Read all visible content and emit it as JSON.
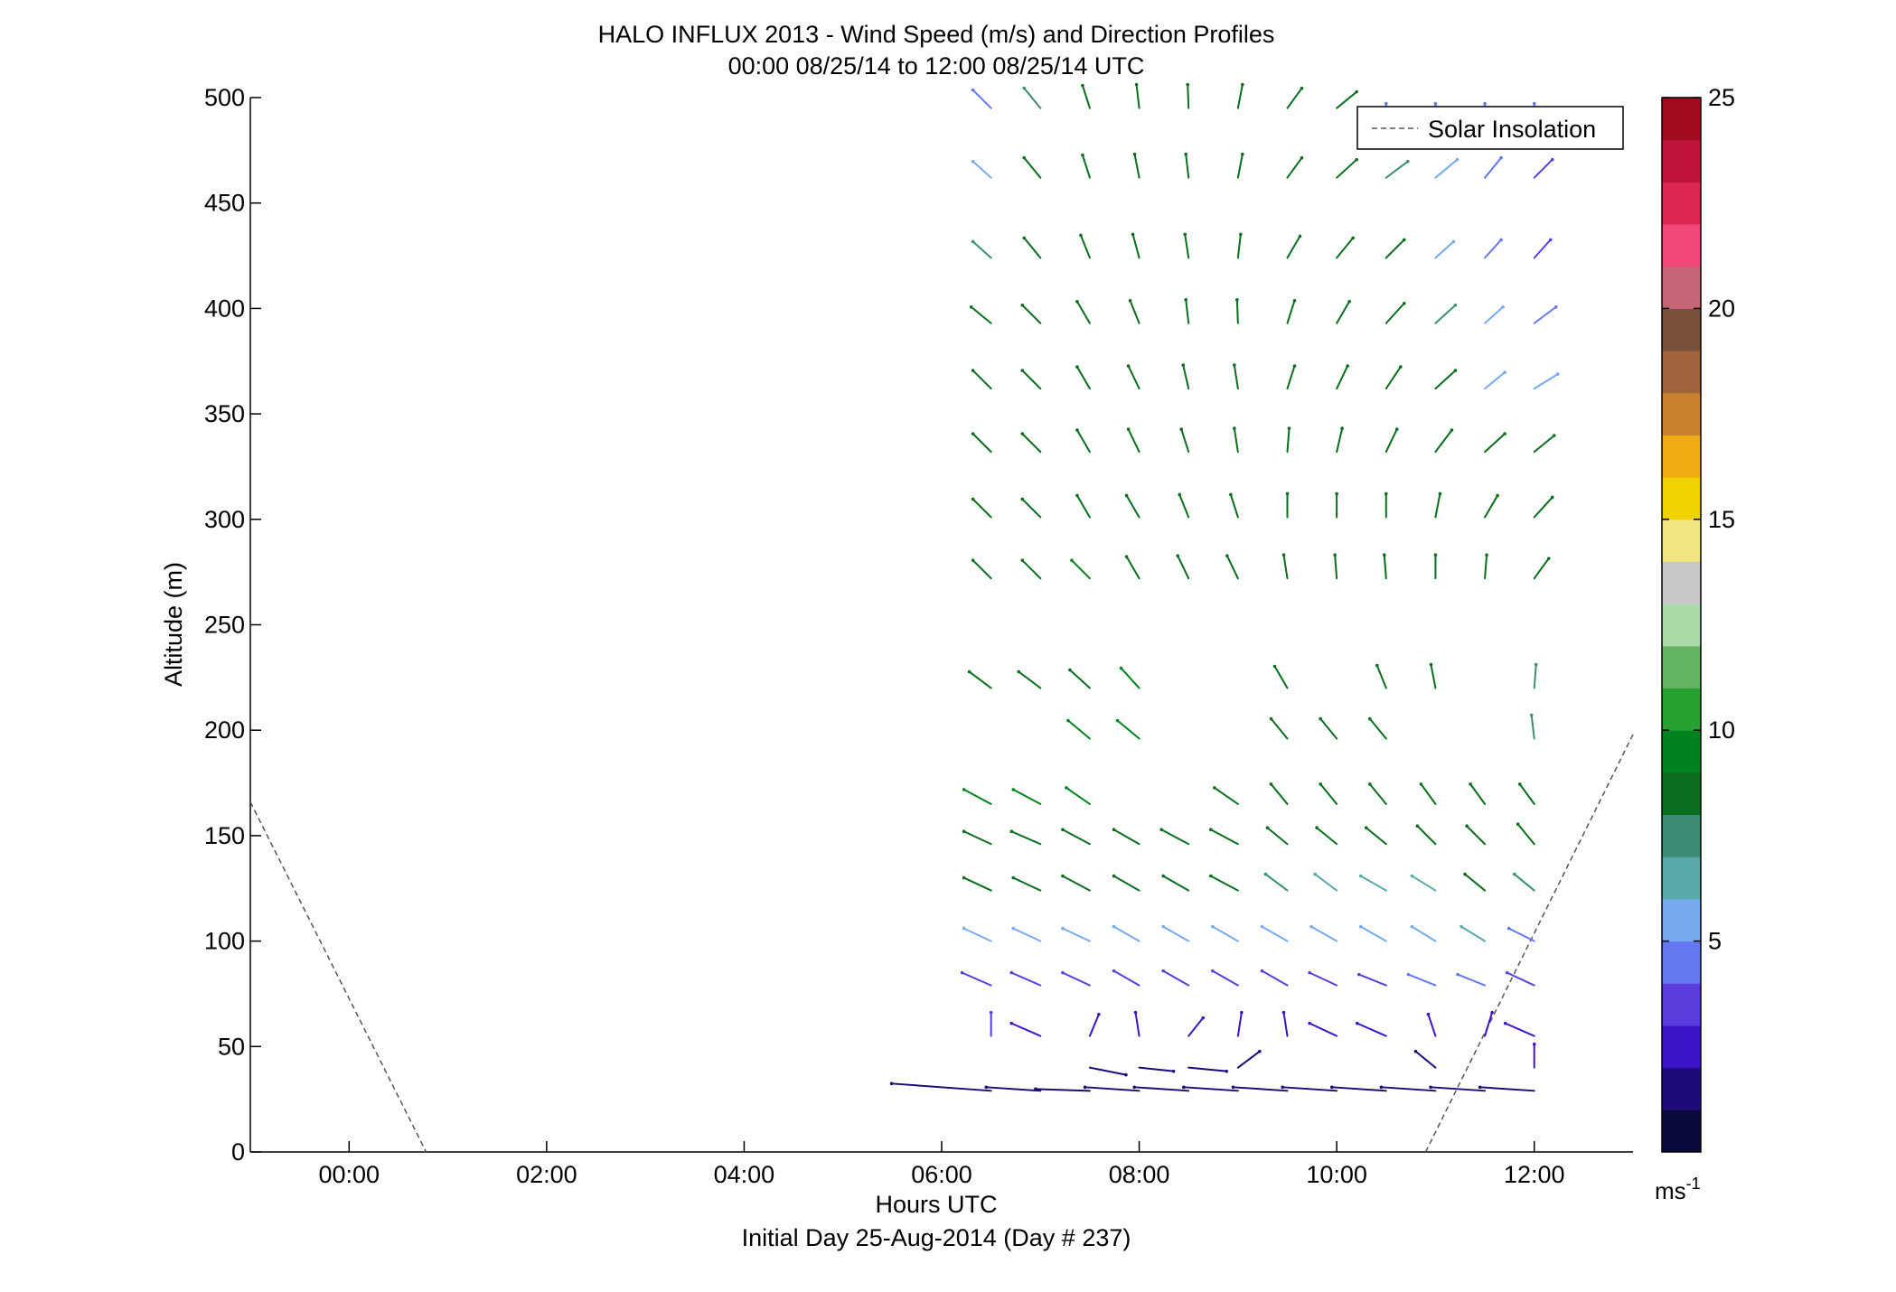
{
  "chart_data": {
    "type": "wind-barb-profile",
    "title": "HALO INFLUX 2013 - Wind Speed (m/s) and Direction Profiles",
    "subtitle": "00:00 08/25/14 to 12:00 08/25/14  UTC",
    "xlabel": "Hours UTC",
    "xlabel2": "Initial Day 25-Aug-2014 (Day # 237)",
    "ylabel": "Altitude (m)",
    "xlim": [
      -1,
      13
    ],
    "ylim": [
      0,
      500
    ],
    "xticks": [
      0,
      2,
      4,
      6,
      8,
      10,
      12
    ],
    "xtick_labels": [
      "00:00",
      "02:00",
      "04:00",
      "06:00",
      "08:00",
      "10:00",
      "12:00"
    ],
    "yticks": [
      0,
      50,
      100,
      150,
      200,
      250,
      300,
      350,
      400,
      450,
      500
    ],
    "ytick_labels": [
      "0",
      "50",
      "100",
      "150",
      "200",
      "250",
      "300",
      "350",
      "400",
      "450",
      "500"
    ],
    "legend": {
      "label": "Solar Insolation",
      "placement": "top-right"
    },
    "solar_insolation": [
      {
        "x": -1.0,
        "y": 166
      },
      {
        "x": 0.78,
        "y": 0
      },
      {
        "x": 10.9,
        "y": 0
      },
      {
        "x": 13.0,
        "y": 198
      }
    ],
    "colorbar": {
      "range": [
        0,
        25
      ],
      "ticks": [
        5,
        10,
        15,
        20,
        25
      ],
      "tick_labels": [
        "5",
        "10",
        "15",
        "20",
        "25"
      ],
      "unit_base": "ms",
      "unit_exp": "-1",
      "colors": [
        "#0a0a3c",
        "#1e0a78",
        "#3c14c8",
        "#5a3cdc",
        "#6478f0",
        "#78aaf0",
        "#5aaaaa",
        "#3c8c78",
        "#0a6e1e",
        "#00821e",
        "#28a032",
        "#64b464",
        "#aadcaa",
        "#c8c8c8",
        "#f0e682",
        "#f0d200",
        "#f0aa14",
        "#c8822d",
        "#a0643c",
        "#78503c",
        "#c86478",
        "#f04678",
        "#dc2850",
        "#be143c",
        "#a00a1e"
      ]
    },
    "time_columns": [
      6.5,
      7.0,
      7.5,
      8.0,
      8.5,
      9.0,
      9.5,
      10.0,
      10.5,
      11.0,
      11.5,
      12.0
    ],
    "barbs": [
      {
        "alt": 495,
        "d": [
          [
            -20,
            -20,
            4.5
          ],
          [
            -18,
            -22,
            7.5
          ],
          [
            -8,
            -25,
            8
          ],
          [
            -3,
            -26,
            8
          ],
          [
            -1,
            -26,
            8
          ],
          [
            5,
            -26,
            8
          ],
          [
            16,
            -22,
            8
          ],
          [
            22,
            -18,
            8
          ],
          [
            0,
            -5,
            4
          ],
          [
            0,
            -5,
            4
          ],
          [
            0,
            -5,
            4
          ],
          [
            0,
            -5,
            4
          ]
        ]
      },
      {
        "alt": 462,
        "d": [
          [
            -20,
            -18,
            5
          ],
          [
            -18,
            -22,
            8
          ],
          [
            -8,
            -25,
            8
          ],
          [
            -5,
            -26,
            8
          ],
          [
            -3,
            -26,
            8
          ],
          [
            5,
            -26,
            8
          ],
          [
            16,
            -22,
            8
          ],
          [
            22,
            -20,
            8
          ],
          [
            24,
            -18,
            7.5
          ],
          [
            24,
            -20,
            5
          ],
          [
            18,
            -22,
            4
          ],
          [
            20,
            -20,
            3.5
          ]
        ]
      },
      {
        "alt": 424,
        "d": [
          [
            -20,
            -18,
            7
          ],
          [
            -18,
            -22,
            8
          ],
          [
            -10,
            -25,
            8
          ],
          [
            -7,
            -26,
            8
          ],
          [
            -4,
            -26,
            8
          ],
          [
            3,
            -26,
            8
          ],
          [
            14,
            -24,
            8
          ],
          [
            18,
            -22,
            8
          ],
          [
            20,
            -20,
            8
          ],
          [
            20,
            -18,
            5
          ],
          [
            18,
            -20,
            4
          ],
          [
            18,
            -20,
            3.5
          ]
        ]
      },
      {
        "alt": 393,
        "d": [
          [
            -22,
            -18,
            8
          ],
          [
            -20,
            -20,
            8
          ],
          [
            -14,
            -24,
            8
          ],
          [
            -10,
            -25,
            8
          ],
          [
            -3,
            -26,
            8
          ],
          [
            -1,
            -26,
            8
          ],
          [
            8,
            -25,
            8
          ],
          [
            14,
            -24,
            8
          ],
          [
            20,
            -22,
            8
          ],
          [
            22,
            -20,
            7.5
          ],
          [
            20,
            -18,
            5
          ],
          [
            24,
            -18,
            4
          ]
        ]
      },
      {
        "alt": 362,
        "d": [
          [
            -20,
            -20,
            8
          ],
          [
            -20,
            -20,
            8
          ],
          [
            -14,
            -24,
            8
          ],
          [
            -12,
            -25,
            8
          ],
          [
            -6,
            -26,
            8
          ],
          [
            -4,
            -26,
            8
          ],
          [
            8,
            -25,
            8
          ],
          [
            12,
            -25,
            8
          ],
          [
            16,
            -24,
            8
          ],
          [
            22,
            -20,
            8
          ],
          [
            22,
            -18,
            5
          ],
          [
            26,
            -16,
            5
          ]
        ]
      },
      {
        "alt": 332,
        "d": [
          [
            -20,
            -20,
            8
          ],
          [
            -20,
            -20,
            8
          ],
          [
            -14,
            -24,
            8
          ],
          [
            -12,
            -25,
            8
          ],
          [
            -8,
            -25,
            8
          ],
          [
            -4,
            -26,
            8
          ],
          [
            2,
            -26,
            8
          ],
          [
            6,
            -26,
            8
          ],
          [
            12,
            -25,
            8
          ],
          [
            18,
            -24,
            8
          ],
          [
            22,
            -20,
            8
          ],
          [
            22,
            -18,
            8
          ]
        ]
      },
      {
        "alt": 301,
        "d": [
          [
            -20,
            -20,
            8
          ],
          [
            -20,
            -20,
            8
          ],
          [
            -14,
            -24,
            8
          ],
          [
            -14,
            -24,
            8
          ],
          [
            -10,
            -25,
            8
          ],
          [
            -8,
            -25,
            8
          ],
          [
            0,
            -26,
            8
          ],
          [
            0,
            -26,
            8
          ],
          [
            0,
            -26,
            8
          ],
          [
            5,
            -26,
            8
          ],
          [
            14,
            -24,
            8
          ],
          [
            20,
            -22,
            8
          ]
        ]
      },
      {
        "alt": 272,
        "d": [
          [
            -20,
            -20,
            8
          ],
          [
            -20,
            -20,
            8.5
          ],
          [
            -20,
            -20,
            9
          ],
          [
            -14,
            -24,
            8
          ],
          [
            -12,
            -25,
            8
          ],
          [
            -12,
            -25,
            8
          ],
          [
            -4,
            -26,
            8
          ],
          [
            -2,
            -26,
            8
          ],
          [
            -2,
            -26,
            8
          ],
          [
            0,
            -26,
            8
          ],
          [
            2,
            -26,
            8
          ],
          [
            16,
            -22,
            8
          ]
        ]
      },
      {
        "alt": 220,
        "d": [
          [
            -24,
            -18,
            8
          ],
          [
            -24,
            -18,
            8
          ],
          [
            -22,
            -20,
            8.5
          ],
          [
            -20,
            -22,
            9
          ],
          null,
          null,
          [
            -14,
            -24,
            8
          ],
          null,
          [
            -10,
            -25,
            8
          ],
          [
            -5,
            -26,
            8
          ],
          null,
          [
            2,
            -26,
            7.5
          ]
        ]
      },
      {
        "alt": 196,
        "d": [
          null,
          null,
          [
            -24,
            -20,
            9
          ],
          [
            -24,
            -20,
            9.5
          ],
          null,
          null,
          [
            -18,
            -22,
            8
          ],
          [
            -18,
            -22,
            8
          ],
          [
            -18,
            -22,
            8
          ],
          null,
          null,
          [
            -3,
            -26,
            7.5
          ]
        ]
      },
      {
        "alt": 165,
        "d": [
          [
            -30,
            -16,
            9.5
          ],
          [
            -30,
            -16,
            9
          ],
          [
            -26,
            -18,
            9
          ],
          null,
          null,
          [
            -26,
            -18,
            8
          ],
          [
            -18,
            -22,
            8
          ],
          [
            -18,
            -22,
            8
          ],
          [
            -18,
            -22,
            8
          ],
          [
            -16,
            -22,
            8
          ],
          [
            -16,
            -22,
            8
          ],
          [
            -16,
            -22,
            8
          ]
        ]
      },
      {
        "alt": 146,
        "d": [
          [
            -30,
            -14,
            8
          ],
          [
            -32,
            -14,
            8
          ],
          [
            -30,
            -16,
            8
          ],
          [
            -28,
            -16,
            8
          ],
          [
            -30,
            -16,
            8
          ],
          [
            -30,
            -16,
            8
          ],
          [
            -22,
            -18,
            8
          ],
          [
            -22,
            -18,
            8
          ],
          [
            -22,
            -18,
            8
          ],
          [
            -20,
            -20,
            8
          ],
          [
            -20,
            -20,
            8
          ],
          [
            -18,
            -22,
            8
          ]
        ]
      },
      {
        "alt": 124,
        "d": [
          [
            -30,
            -14,
            8
          ],
          [
            -30,
            -14,
            8
          ],
          [
            -30,
            -16,
            8
          ],
          [
            -28,
            -16,
            8
          ],
          [
            -28,
            -16,
            8
          ],
          [
            -30,
            -16,
            8
          ],
          [
            -24,
            -18,
            7
          ],
          [
            -24,
            -18,
            6
          ],
          [
            -28,
            -16,
            6
          ],
          [
            -26,
            -16,
            6
          ],
          [
            -22,
            -18,
            8
          ],
          [
            -22,
            -18,
            7
          ]
        ]
      },
      {
        "alt": 100,
        "d": [
          [
            -30,
            -14,
            5
          ],
          [
            -30,
            -14,
            5
          ],
          [
            -30,
            -14,
            5.5
          ],
          [
            -28,
            -16,
            5.5
          ],
          [
            -28,
            -16,
            5.5
          ],
          [
            -28,
            -16,
            5
          ],
          [
            -28,
            -16,
            5
          ],
          [
            -28,
            -16,
            5
          ],
          [
            -28,
            -16,
            5
          ],
          [
            -26,
            -16,
            5.5
          ],
          [
            -26,
            -16,
            6
          ],
          [
            -28,
            -14,
            4.5
          ]
        ]
      },
      {
        "alt": 79,
        "d": [
          [
            -32,
            -14,
            3.5
          ],
          [
            -32,
            -14,
            3.5
          ],
          [
            -30,
            -14,
            3.5
          ],
          [
            -28,
            -16,
            3.5
          ],
          [
            -28,
            -16,
            3.5
          ],
          [
            -28,
            -16,
            3.5
          ],
          [
            -28,
            -16,
            3.5
          ],
          [
            -30,
            -14,
            3.5
          ],
          [
            -30,
            -12,
            3.5
          ],
          [
            -30,
            -12,
            4
          ],
          [
            -30,
            -12,
            4.5
          ],
          [
            -30,
            -14,
            3.5
          ]
        ]
      },
      {
        "alt": 55,
        "d": [
          [
            0,
            -26,
            3
          ],
          [
            -32,
            -14,
            2.5
          ],
          [
            10,
            -24,
            2
          ],
          [
            -4,
            -26,
            2.5
          ],
          [
            16,
            -20,
            2.5
          ],
          [
            4,
            -26,
            2.5
          ],
          [
            -4,
            -26,
            2.5
          ],
          [
            -30,
            -14,
            2.5
          ],
          [
            -32,
            -14,
            2.5
          ],
          [
            -8,
            -24,
            2.5
          ],
          [
            8,
            -26,
            2.5
          ],
          [
            -32,
            -14,
            2.5
          ]
        ]
      },
      {
        "alt": 40,
        "d": [
          null,
          null,
          [
            40,
            8,
            1.5
          ],
          [
            38,
            4,
            1.5
          ],
          [
            42,
            4,
            1
          ],
          [
            24,
            -18,
            1
          ],
          null,
          null,
          null,
          [
            -22,
            -18,
            1
          ],
          null,
          [
            0,
            -26,
            2.5
          ]
        ]
      },
      {
        "alt": 29,
        "d": [
          [
            -110,
            -8,
            1.5
          ],
          [
            -60,
            -4,
            1
          ],
          [
            -60,
            -2,
            1.5
          ],
          [
            -60,
            -4,
            1.5
          ],
          [
            -60,
            -4,
            1.5
          ],
          [
            -60,
            -4,
            1.5
          ],
          [
            -60,
            -4,
            1.5
          ],
          [
            -60,
            -4,
            1.5
          ],
          [
            -60,
            -4,
            1.5
          ],
          [
            -60,
            -4,
            1.5
          ],
          [
            -60,
            -4,
            1.5
          ],
          [
            -60,
            -4,
            1.5
          ]
        ]
      }
    ]
  }
}
